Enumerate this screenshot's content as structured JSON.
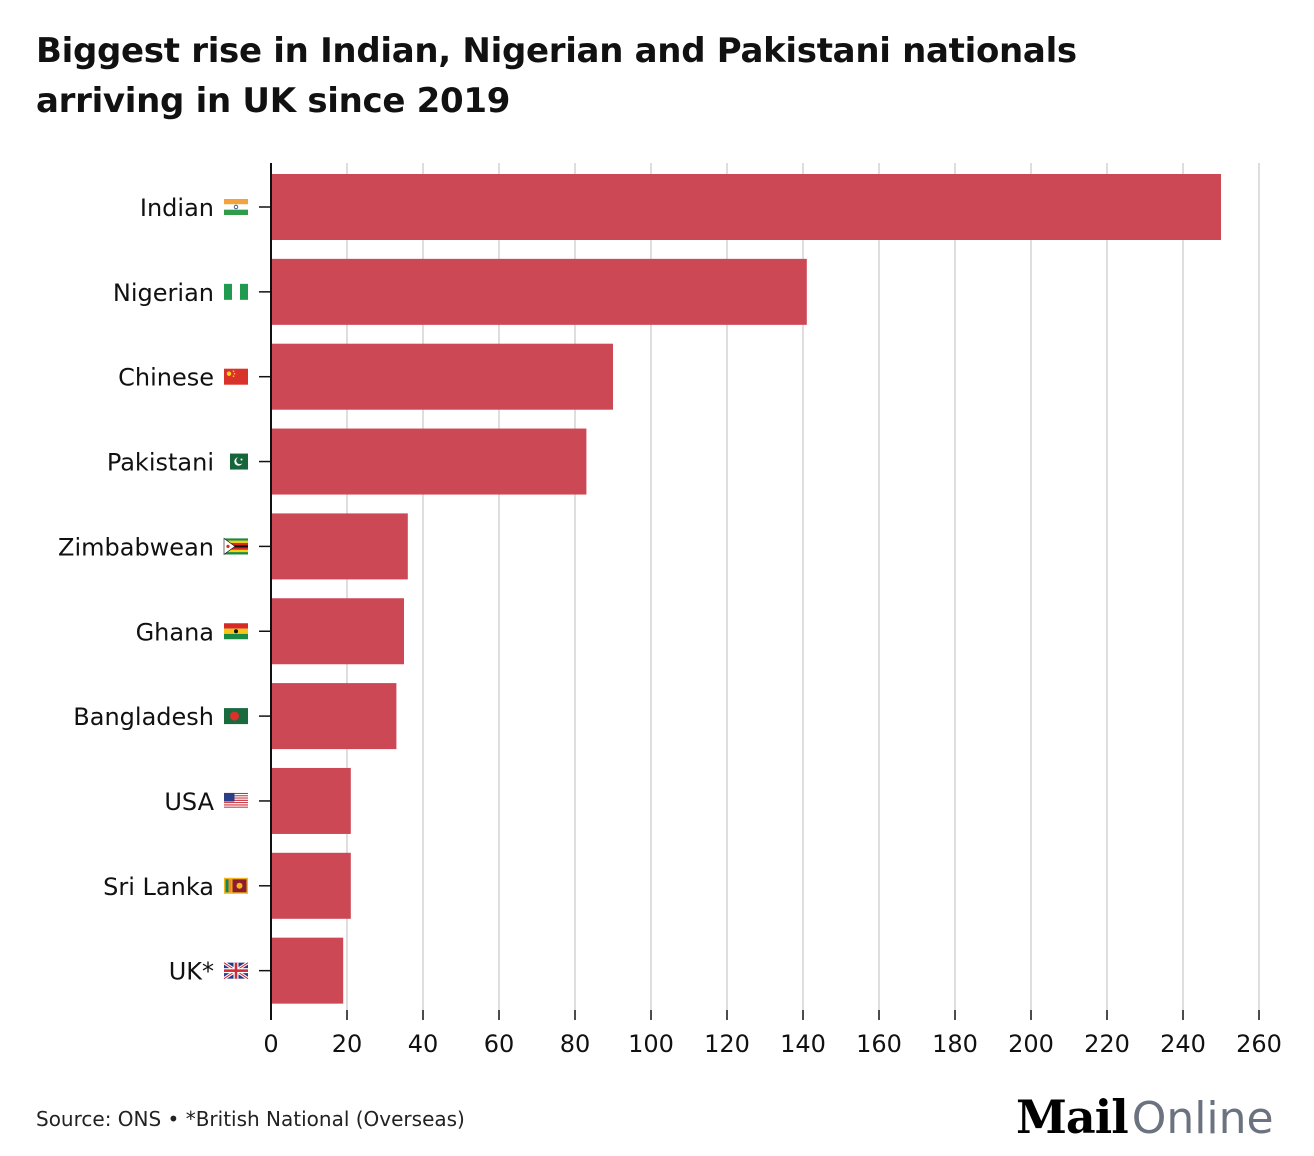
{
  "header": {
    "title_line1": "Biggest rise in Indian, Nigerian and Pakistani nationals",
    "title_line2": "arriving in UK since 2019"
  },
  "footer": {
    "source": "Source: ONS • *British National (Overseas)"
  },
  "logo": {
    "mail": "Mail",
    "online": "Online"
  },
  "colors": {
    "bar": "#cc4855",
    "gridline": "#d4d4d4",
    "axis": "#111111"
  },
  "chart_data": {
    "type": "bar",
    "orientation": "horizontal",
    "title": "Biggest rise in Indian, Nigerian and Pakistani nationals arriving in UK since 2019",
    "xlabel": "",
    "ylabel": "",
    "categories": [
      {
        "label": "Indian",
        "flag": "india-flag-icon"
      },
      {
        "label": "Nigerian",
        "flag": "nigeria-flag-icon"
      },
      {
        "label": "Chinese",
        "flag": "china-flag-icon"
      },
      {
        "label": "Pakistani",
        "flag": "pakistan-flag-icon"
      },
      {
        "label": "Zimbabwean",
        "flag": "zimbabwe-flag-icon"
      },
      {
        "label": "Ghana",
        "flag": "ghana-flag-icon"
      },
      {
        "label": "Bangladesh",
        "flag": "bangladesh-flag-icon"
      },
      {
        "label": "USA",
        "flag": "usa-flag-icon"
      },
      {
        "label": "Sri Lanka",
        "flag": "sri-lanka-flag-icon"
      },
      {
        "label": "UK*",
        "flag": "uk-flag-icon"
      }
    ],
    "values": [
      250,
      141,
      90,
      83,
      36,
      35,
      33,
      21,
      21,
      19
    ],
    "xlim": [
      0,
      260
    ],
    "xticks": [
      0,
      20,
      40,
      60,
      80,
      100,
      120,
      140,
      160,
      180,
      200,
      220,
      240,
      260
    ],
    "grid": "vertical"
  }
}
